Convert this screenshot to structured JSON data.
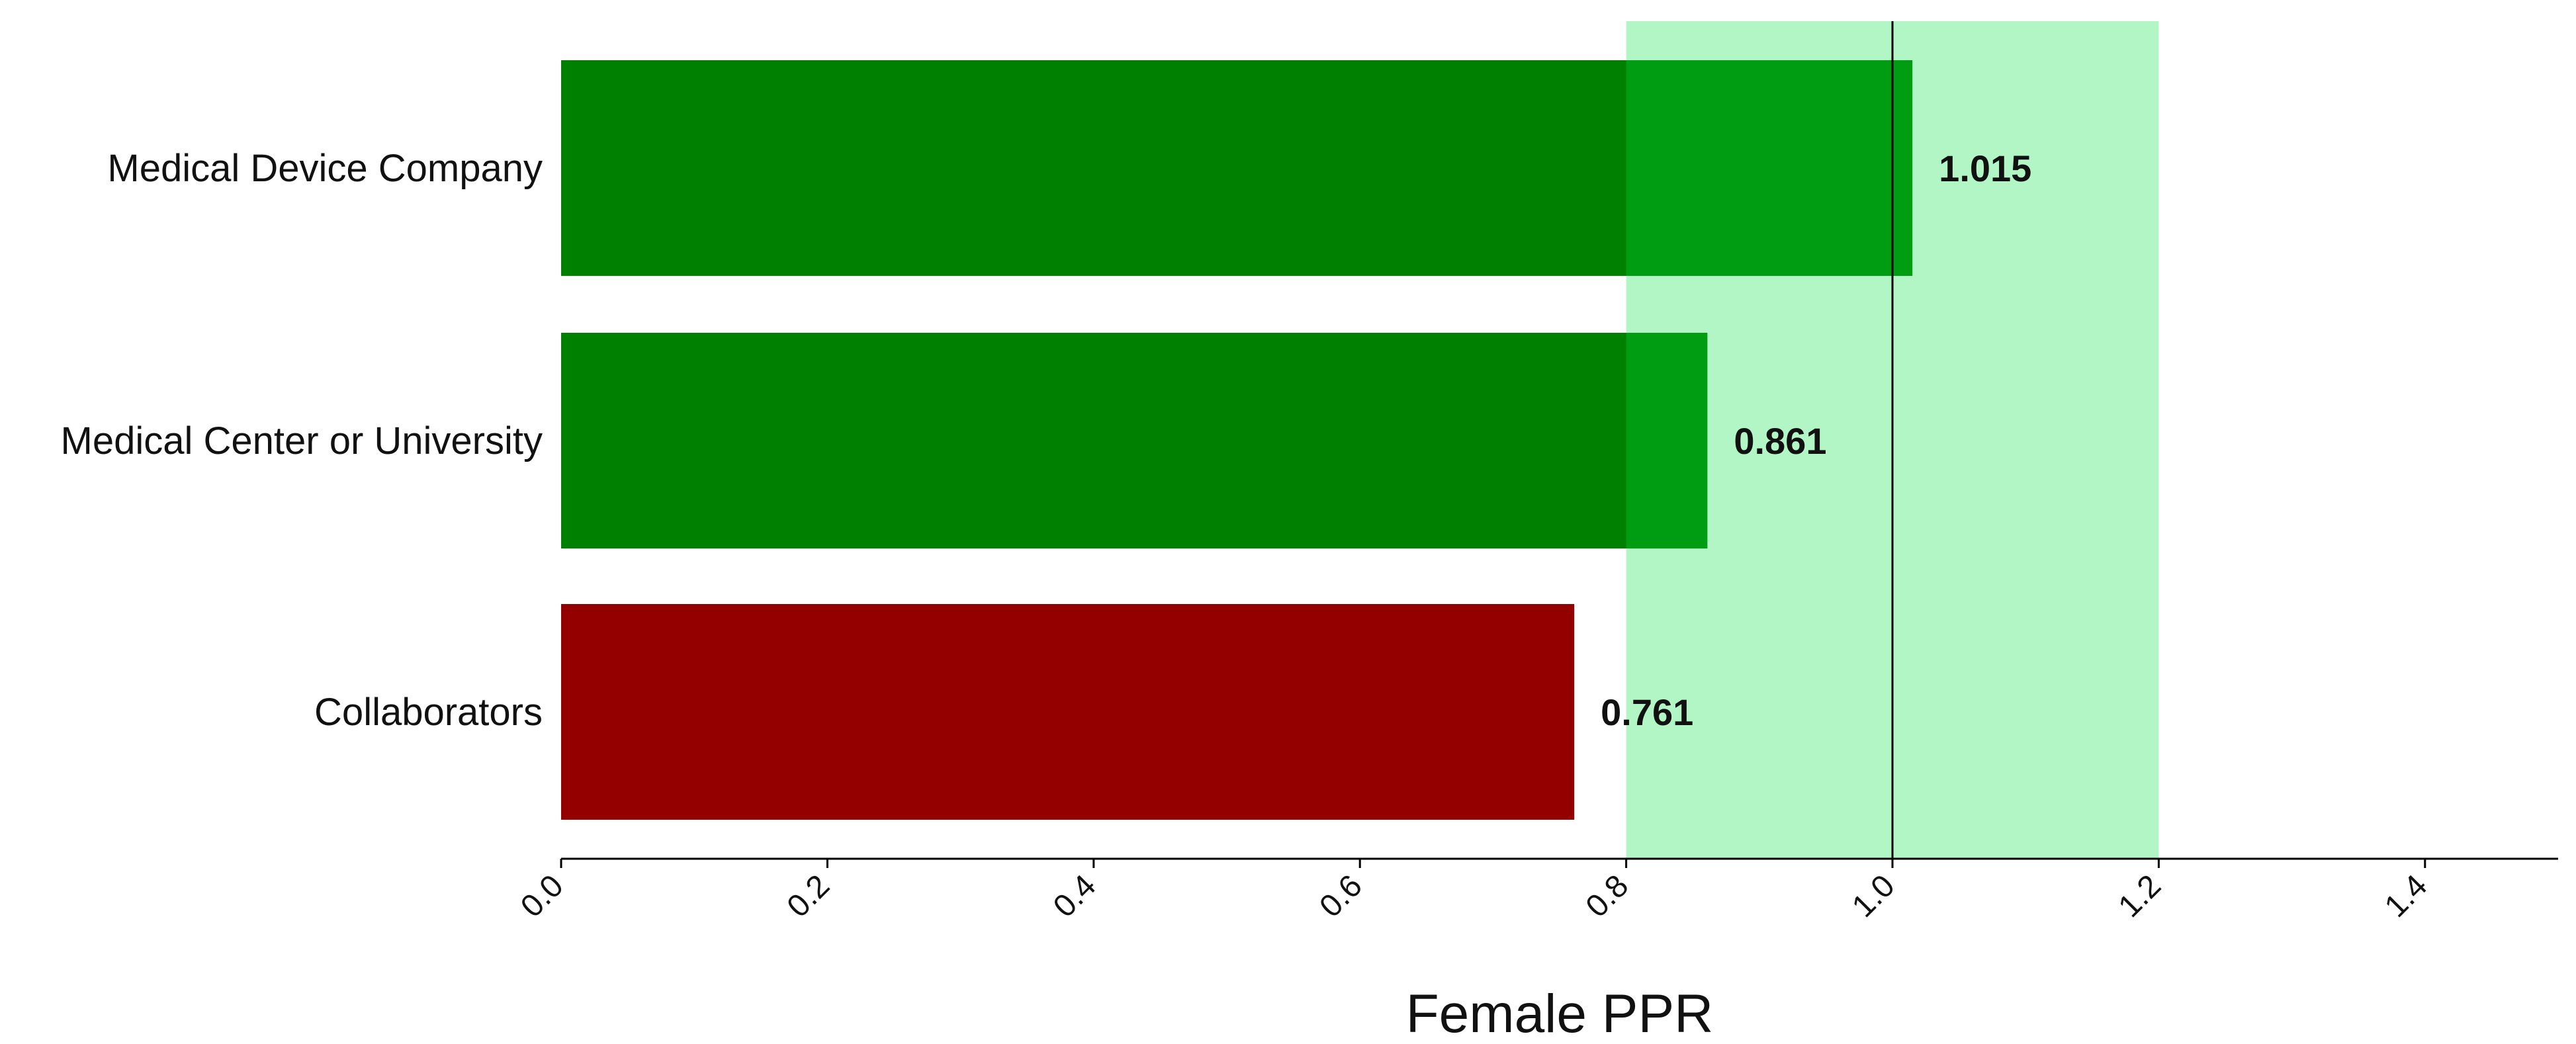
{
  "chart_data": {
    "type": "bar",
    "orientation": "horizontal",
    "categories": [
      "Medical Device Company",
      "Medical Center or University",
      "Collaborators"
    ],
    "values": [
      1.015,
      0.861,
      0.761
    ],
    "value_labels": [
      "1.015",
      "0.861",
      "0.761"
    ],
    "bar_colors": [
      "#008000",
      "#008000",
      "#940000"
    ],
    "xlabel": "Female PPR",
    "ylabel": "",
    "title": "",
    "xlim": [
      0.0,
      1.5
    ],
    "xticks": [
      0.0,
      0.2,
      0.4,
      0.6,
      0.8,
      1.0,
      1.2,
      1.4
    ],
    "xtick_labels": [
      "0.0",
      "0.2",
      "0.4",
      "0.6",
      "0.8",
      "1.0",
      "1.2",
      "1.4"
    ],
    "xtick_rotation_deg": 45,
    "shaded_band": {
      "from": 0.8,
      "to": 1.2,
      "color": "#00e040",
      "opacity": 0.3
    },
    "reference_line": {
      "x": 1.0,
      "color": "#000000"
    },
    "grid": false,
    "legend": "none"
  }
}
